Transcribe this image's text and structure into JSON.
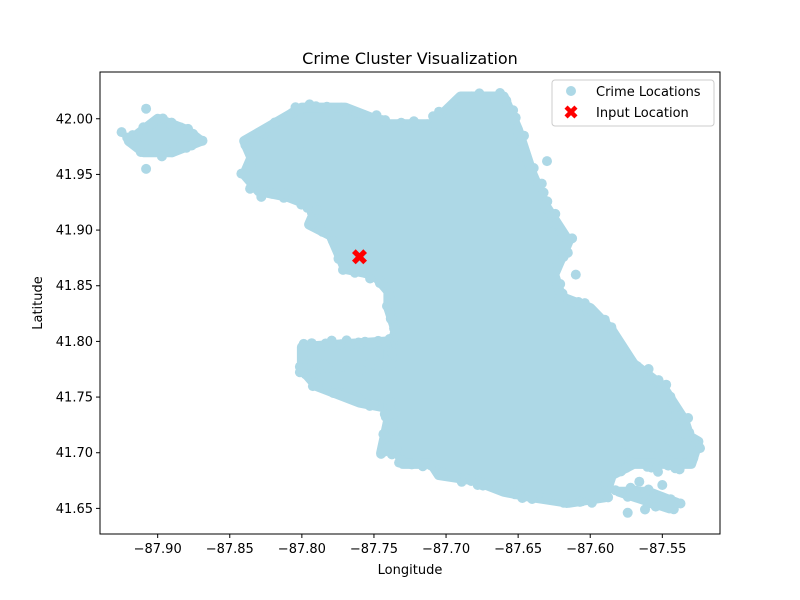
{
  "chart_data": {
    "type": "scatter",
    "title": "Crime Cluster Visualization",
    "xlabel": "Longitude",
    "ylabel": "Latitude",
    "xlim": [
      -87.94,
      -87.51
    ],
    "ylim": [
      41.627,
      42.042
    ],
    "x_ticks": [
      -87.9,
      -87.85,
      -87.8,
      -87.75,
      -87.7,
      -87.65,
      -87.6,
      -87.55
    ],
    "x_tick_labels": [
      "−87.90",
      "−87.85",
      "−87.80",
      "−87.75",
      "−87.70",
      "−87.65",
      "−87.60",
      "−87.55"
    ],
    "y_ticks": [
      41.65,
      41.7,
      41.75,
      41.8,
      41.85,
      41.9,
      41.95,
      42.0
    ],
    "y_tick_labels": [
      "41.65",
      "41.70",
      "41.75",
      "41.80",
      "41.85",
      "41.90",
      "41.95",
      "42.00"
    ],
    "grid": false,
    "legend_position": "top-right",
    "series": [
      {
        "name": "Crime Locations",
        "color": "#add8e6",
        "marker": "circle",
        "regions": [
          [
            [
              -87.9,
              42.0
            ],
            [
              -87.88,
              41.99
            ],
            [
              -87.87,
              41.98
            ],
            [
              -87.89,
              41.97
            ],
            [
              -87.91,
              41.97
            ],
            [
              -87.92,
              41.98
            ]
          ],
          [
            [
              -87.84,
              41.98
            ],
            [
              -87.8,
              42.01
            ],
            [
              -87.77,
              42.01
            ],
            [
              -87.74,
              41.995
            ],
            [
              -87.71,
              41.995
            ],
            [
              -87.69,
              42.02
            ],
            [
              -87.66,
              42.02
            ],
            [
              -87.65,
              41.99
            ],
            [
              -87.64,
              41.95
            ],
            [
              -87.63,
              41.92
            ],
            [
              -87.615,
              41.89
            ],
            [
              -87.62,
              41.875
            ],
            [
              -87.625,
              41.86
            ],
            [
              -87.62,
              41.84
            ],
            [
              -87.6,
              41.83
            ],
            [
              -87.585,
              41.81
            ],
            [
              -87.57,
              41.78
            ],
            [
              -87.55,
              41.76
            ],
            [
              -87.535,
              41.73
            ],
            [
              -87.53,
              41.71
            ],
            [
              -87.545,
              41.69
            ],
            [
              -87.57,
              41.69
            ],
            [
              -87.585,
              41.68
            ],
            [
              -87.59,
              41.66
            ],
            [
              -87.615,
              41.655
            ],
            [
              -87.64,
              41.66
            ],
            [
              -87.66,
              41.665
            ],
            [
              -87.68,
              41.675
            ],
            [
              -87.705,
              41.68
            ],
            [
              -87.71,
              41.69
            ],
            [
              -87.73,
              41.69
            ],
            [
              -87.735,
              41.705
            ],
            [
              -87.74,
              41.74
            ],
            [
              -87.76,
              41.745
            ],
            [
              -87.79,
              41.76
            ],
            [
              -87.8,
              41.775
            ],
            [
              -87.77,
              41.78
            ],
            [
              -87.74,
              41.785
            ],
            [
              -87.735,
              41.81
            ],
            [
              -87.74,
              41.83
            ],
            [
              -87.74,
              41.845
            ],
            [
              -87.75,
              41.86
            ],
            [
              -87.77,
              41.865
            ],
            [
              -87.775,
              41.88
            ],
            [
              -87.78,
              41.895
            ],
            [
              -87.795,
              41.905
            ],
            [
              -87.79,
              41.92
            ],
            [
              -87.81,
              41.93
            ],
            [
              -87.83,
              41.935
            ],
            [
              -87.84,
              41.95
            ],
            [
              -87.835,
              41.965
            ]
          ],
          [
            [
              -87.74,
              41.745
            ],
            [
              -87.735,
              41.705
            ],
            [
              -87.745,
              41.7
            ],
            [
              -87.74,
              41.73
            ]
          ],
          [
            [
              -87.8,
              41.795
            ],
            [
              -87.74,
              41.8
            ],
            [
              -87.74,
              41.78
            ],
            [
              -87.8,
              41.775
            ]
          ],
          [
            [
              -87.545,
              41.725
            ],
            [
              -87.525,
              41.71
            ],
            [
              -87.53,
              41.69
            ],
            [
              -87.545,
              41.69
            ],
            [
              -87.55,
              41.7
            ]
          ],
          [
            [
              -87.58,
              41.665
            ],
            [
              -87.545,
              41.65
            ],
            [
              -87.54,
              41.655
            ],
            [
              -87.56,
              41.665
            ]
          ]
        ],
        "outliers": [
          [
            -87.925,
            41.988
          ],
          [
            -87.908,
            42.009
          ],
          [
            -87.908,
            41.955
          ],
          [
            -87.878,
            41.984
          ],
          [
            -87.89,
            41.97
          ],
          [
            -87.574,
            41.646
          ],
          [
            -87.562,
            41.649
          ],
          [
            -87.566,
            41.674
          ],
          [
            -87.55,
            41.671
          ],
          [
            -87.538,
            41.685
          ],
          [
            -87.553,
            41.683
          ],
          [
            -87.63,
            41.962
          ],
          [
            -87.61,
            41.86
          ],
          [
            -87.8,
            41.97
          ],
          [
            -87.58,
            41.715
          ],
          [
            -87.575,
            41.708
          ]
        ]
      },
      {
        "name": "Input Location",
        "color": "#ff0000",
        "marker": "x",
        "x": [
          -87.76
        ],
        "y": [
          41.876
        ]
      }
    ]
  }
}
